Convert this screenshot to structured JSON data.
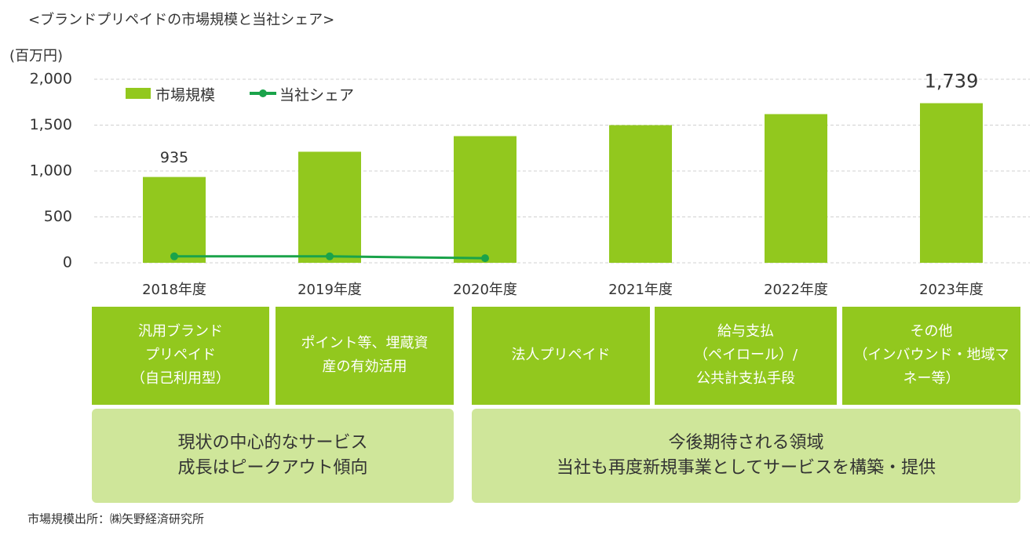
{
  "chart_data": {
    "type": "bar",
    "title": "<ブランドプリペイドの市場規模と当社シェア>",
    "y_unit": "(百万円)",
    "categories": [
      "2018年度",
      "2019年度",
      "2020年度",
      "2021年度",
      "2022年度",
      "2023年度"
    ],
    "series": [
      {
        "name": "市場規模",
        "type": "bar",
        "color": "#92c81e",
        "values": [
          935,
          1210,
          1380,
          1500,
          1620,
          1739
        ],
        "value_labels": [
          "935",
          null,
          null,
          null,
          null,
          "1,739"
        ]
      },
      {
        "name": "当社シェア",
        "type": "line",
        "color": "#1aa34a",
        "values": [
          70,
          70,
          50,
          null,
          null,
          null
        ]
      }
    ],
    "ylim": [
      0,
      2000
    ],
    "yticks": [
      0,
      500,
      {
        "value": 1000,
        "label": "1,000"
      },
      {
        "value": 1500,
        "label": "1,500"
      },
      {
        "value": 2000,
        "label": "2,000"
      }
    ],
    "grid": true
  },
  "segments": {
    "row1": [
      [
        "汎用ブランド",
        "プリペイド",
        "（自己利用型）"
      ],
      [
        "ポイント等、埋蔵資",
        "産の有効活用"
      ],
      [
        "法人プリペイド"
      ],
      [
        "給与支払",
        "（ペイロール）/",
        "公共計支払手段"
      ],
      [
        "その他",
        "（インバウンド・地域マ",
        "ネー等）"
      ]
    ],
    "row2": [
      [
        "現状の中心的なサービス",
        "成長はピークアウト傾向"
      ],
      [
        "今後期待される領域",
        "当社も再度新規事業としてサービスを構築・提供"
      ]
    ]
  },
  "source": "市場規模出所：㈱矢野経済研究所"
}
